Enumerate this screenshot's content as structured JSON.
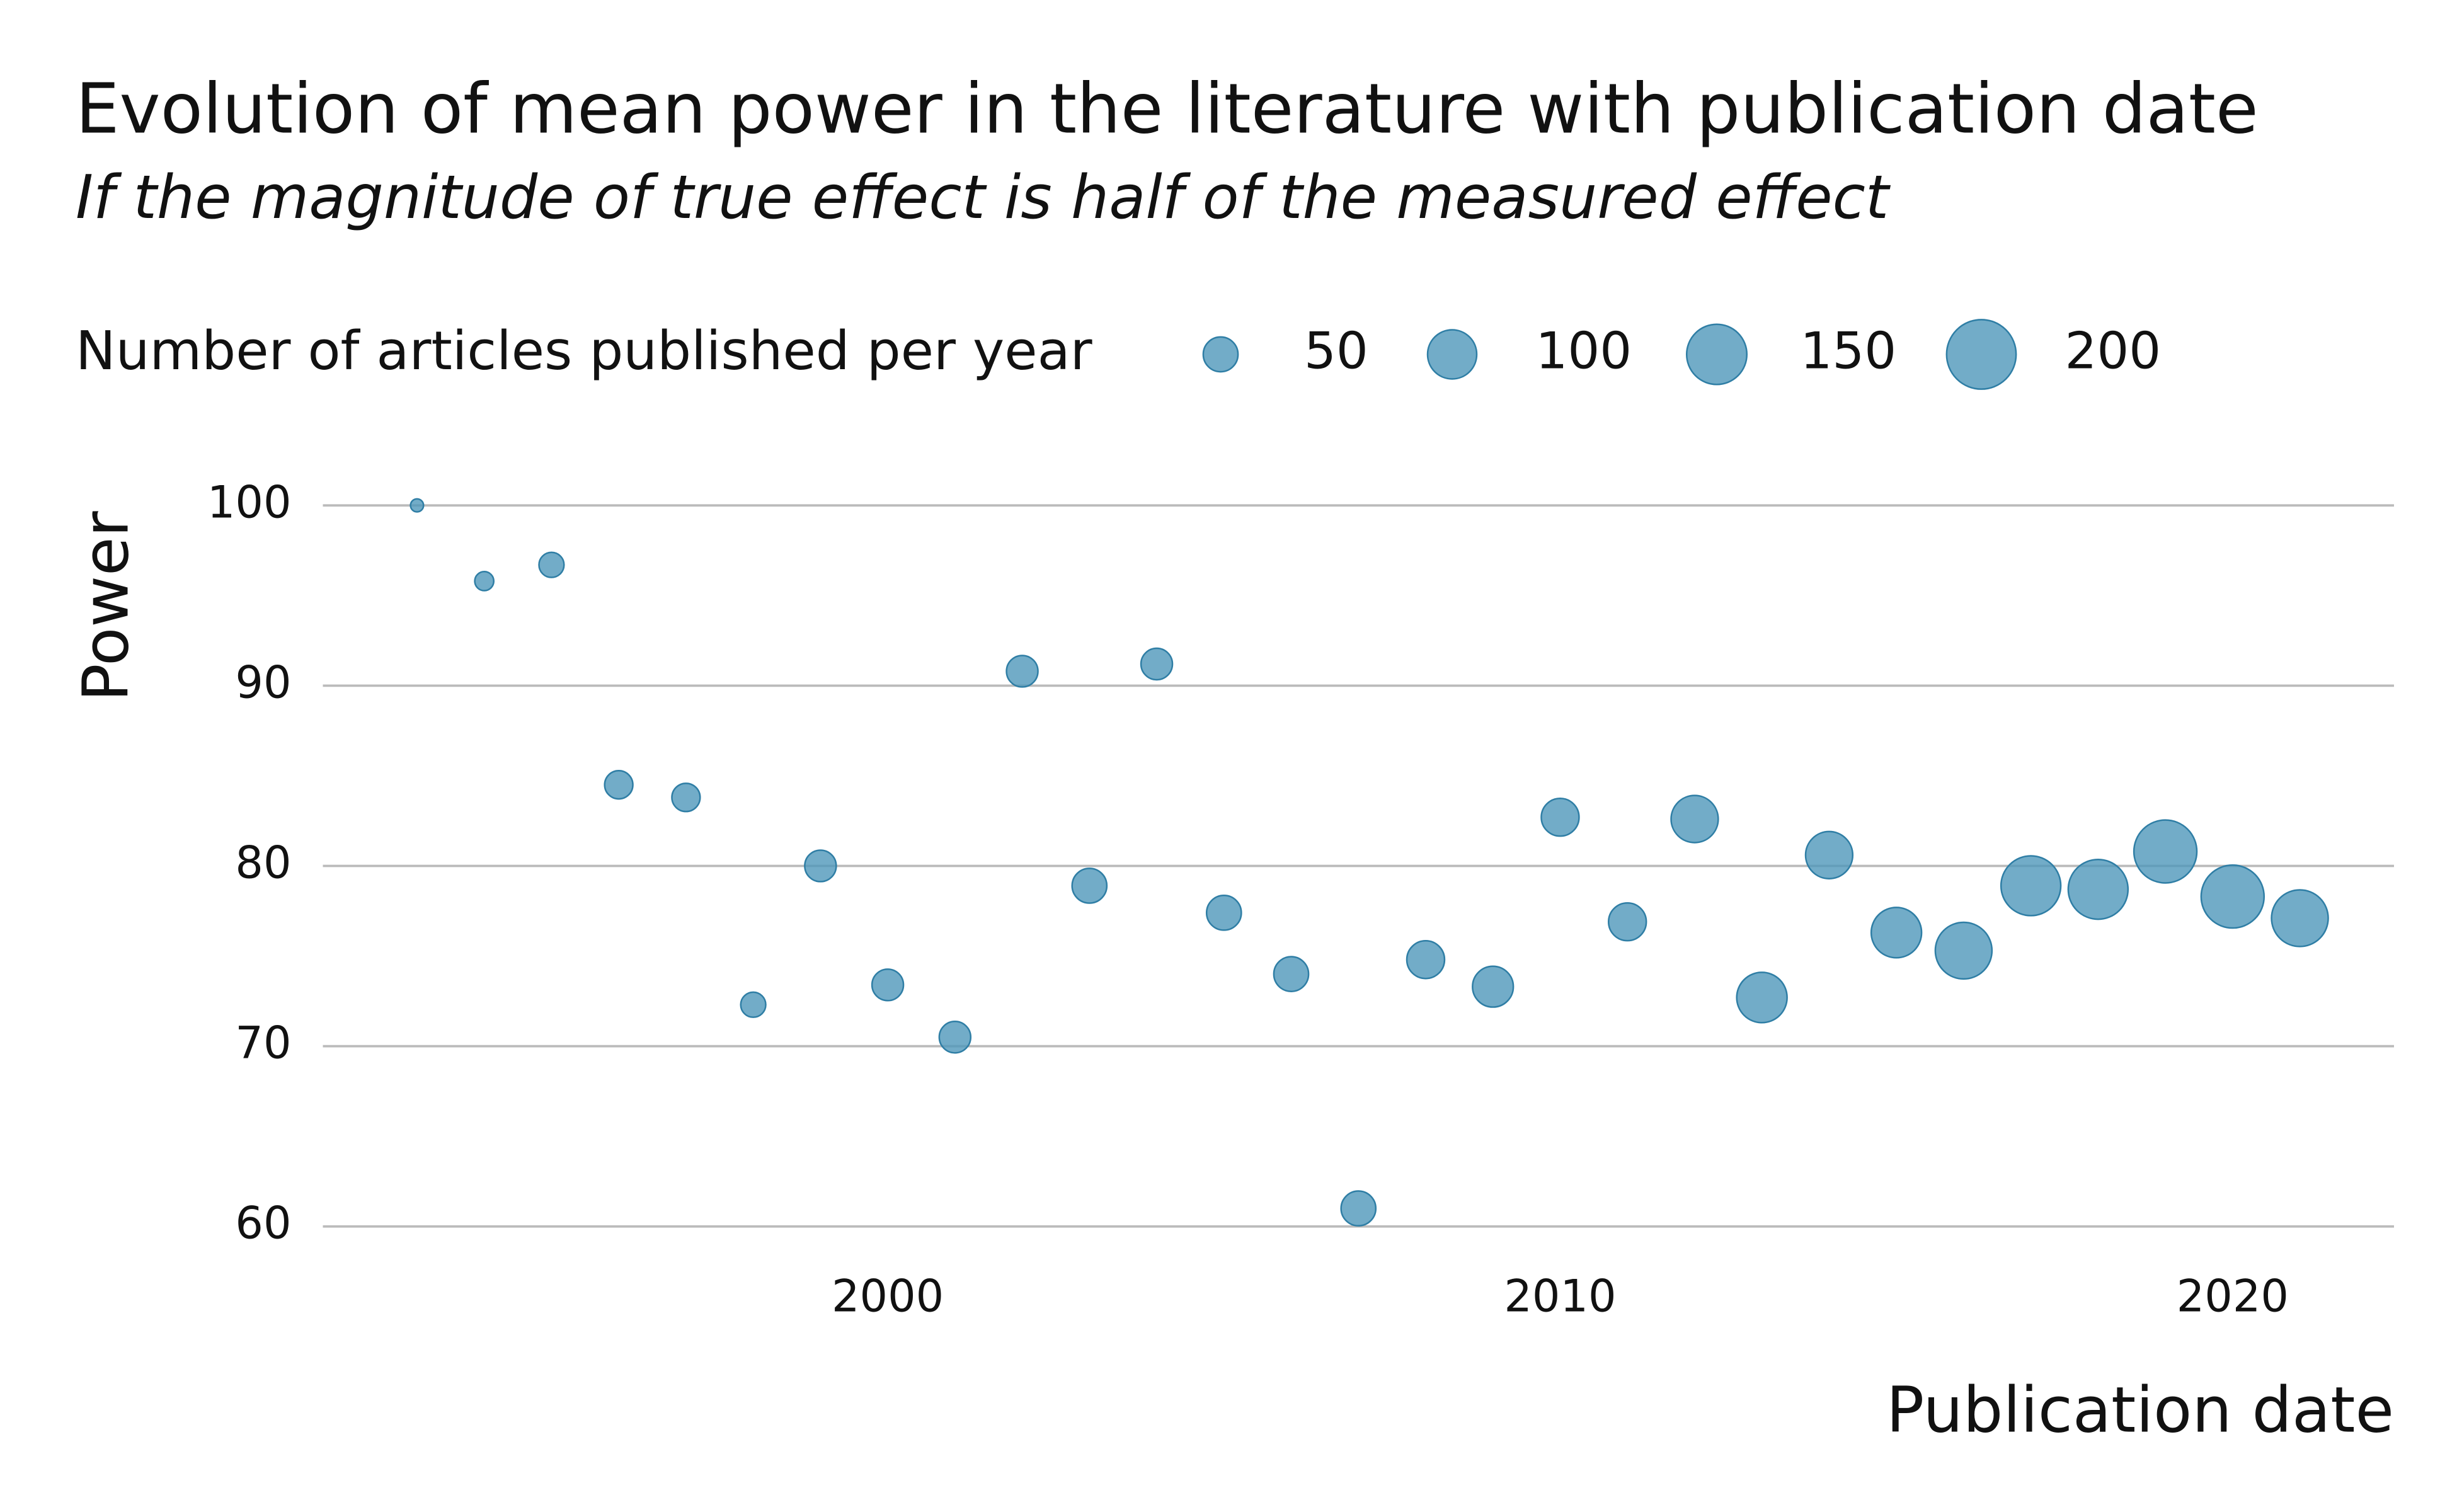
{
  "chart_data": {
    "type": "scatter",
    "title": "Evolution of mean power in the literature with publication date",
    "subtitle": "If the magnitude of true effect is half of the measured effect",
    "x_label": "Publication date",
    "y_label": "Power",
    "size_legend_title": "Number of articles published per year",
    "size_legend_values": [
      50,
      100,
      150,
      200
    ],
    "color": "#4f97ba",
    "x": [
      1993,
      1994,
      1995,
      1996,
      1997,
      1998,
      1999,
      2000,
      2001,
      2002,
      2003,
      2004,
      2005,
      2006,
      2007,
      2008,
      2009,
      2010,
      2011,
      2012,
      2013,
      2014,
      2015,
      2016,
      2017,
      2018,
      2019,
      2020,
      2021
    ],
    "values": [
      100,
      95.8,
      96.7,
      84.5,
      83.8,
      72.3,
      80.0,
      73.4,
      70.5,
      90.8,
      78.9,
      91.2,
      77.4,
      74.0,
      61.0,
      74.8,
      73.3,
      82.7,
      76.9,
      82.6,
      72.7,
      80.6,
      76.3,
      75.3,
      78.9,
      78.7,
      80.8,
      78.3,
      77.1
    ],
    "sizes": [
      7,
      15,
      26,
      33,
      33,
      26,
      41,
      41,
      41,
      41,
      50,
      41,
      50,
      50,
      50,
      59,
      69,
      59,
      59,
      92,
      105,
      92,
      105,
      133,
      148,
      148,
      164,
      164,
      133
    ],
    "xlim": [
      1991.6,
      2022.4
    ],
    "ylim": [
      57.7,
      102
    ],
    "xticks": [
      2000,
      2010,
      2020
    ],
    "yticks": [
      60,
      70,
      80,
      90,
      100
    ],
    "grid": true
  }
}
